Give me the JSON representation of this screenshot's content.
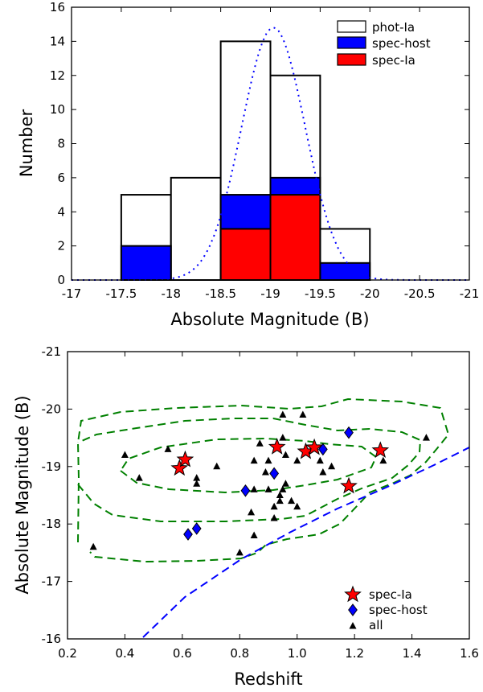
{
  "chart_data": [
    {
      "type": "bar",
      "subtype": "histogram",
      "xlabel": "Absolute Magnitude (B)",
      "ylabel": "Number",
      "xlim": [
        -17,
        -21
      ],
      "ylim": [
        0,
        16
      ],
      "xticks": [
        "-17",
        "-17.5",
        "-18",
        "-18.5",
        "-19",
        "-19.5",
        "-20",
        "-20.5",
        "-21"
      ],
      "xtick_values": [
        -17,
        -17.5,
        -18,
        -18.5,
        -19,
        -19.5,
        -20,
        -20.5,
        -21
      ],
      "yticks": [
        "0",
        "2",
        "4",
        "6",
        "8",
        "10",
        "12",
        "14",
        "16"
      ],
      "ytick_values": [
        0,
        2,
        4,
        6,
        8,
        10,
        12,
        14,
        16
      ],
      "bin_edges": [
        -17.5,
        -18,
        -18.5,
        -19,
        -19.5,
        -20
      ],
      "series": [
        {
          "name": "phot-Ia",
          "values": [
            5,
            6,
            14,
            12,
            3
          ],
          "color": "#ffffff"
        },
        {
          "name": "spec-host",
          "values": [
            2,
            0,
            5,
            6,
            1
          ],
          "color": "#0000ff"
        },
        {
          "name": "spec-Ia",
          "values": [
            0,
            0,
            3,
            5,
            0
          ],
          "color": "#ff0000"
        }
      ],
      "gaussian_curve": {
        "peak": 14.8,
        "center": -19.03,
        "sigma": 0.32,
        "color": "#0000ff",
        "style": "dotted"
      },
      "legend_position": "upper-right"
    },
    {
      "type": "scatter",
      "xlabel": "Redshift",
      "ylabel": "Absolute Magnitude (B)",
      "xlim": [
        0.2,
        1.6
      ],
      "ylim": [
        -16,
        -21
      ],
      "xticks": [
        "0.2",
        "0.4",
        "0.6",
        "0.8",
        "1.0",
        "1.2",
        "1.4",
        "1.6"
      ],
      "xtick_values": [
        0.2,
        0.4,
        0.6,
        0.8,
        1.0,
        1.2,
        1.4,
        1.6
      ],
      "yticks": [
        "-16",
        "-17",
        "-18",
        "-19",
        "-20",
        "-21"
      ],
      "ytick_values": [
        -16,
        -17,
        -18,
        -19,
        -20,
        -21
      ],
      "series": [
        {
          "name": "spec-Ia",
          "marker": "star",
          "color": "#ff0000",
          "x": [
            0.59,
            0.61,
            0.93,
            1.03,
            1.06,
            1.18,
            1.29
          ],
          "y": [
            -18.97,
            -19.12,
            -19.34,
            -19.26,
            -19.33,
            -18.66,
            -19.28
          ]
        },
        {
          "name": "spec-host",
          "marker": "diamond",
          "color": "#0000ff",
          "x": [
            0.62,
            0.65,
            0.82,
            0.92,
            1.09,
            1.18
          ],
          "y": [
            -17.82,
            -17.92,
            -18.58,
            -18.88,
            -19.3,
            -19.59
          ]
        },
        {
          "name": "all",
          "marker": "triangle",
          "color": "#000000",
          "x": [
            0.29,
            0.4,
            0.45,
            0.55,
            0.65,
            0.65,
            0.72,
            0.8,
            0.84,
            0.85,
            0.85,
            0.85,
            0.87,
            0.89,
            0.9,
            0.9,
            0.92,
            0.92,
            0.94,
            0.94,
            0.95,
            0.95,
            0.95,
            0.96,
            0.96,
            0.98,
            1.0,
            1.0,
            1.02,
            1.08,
            1.09,
            1.12,
            1.3,
            1.45
          ],
          "y": [
            -17.6,
            -19.2,
            -18.8,
            -19.3,
            -18.8,
            -18.7,
            -19.0,
            -17.5,
            -18.2,
            -17.8,
            -18.6,
            -19.1,
            -19.4,
            -18.9,
            -19.1,
            -18.6,
            -18.3,
            -18.1,
            -18.5,
            -18.4,
            -19.9,
            -19.5,
            -18.6,
            -18.7,
            -19.2,
            -18.4,
            -18.3,
            -19.1,
            -19.9,
            -19.1,
            -18.9,
            -19.0,
            -19.1,
            -19.5
          ]
        }
      ],
      "contours": {
        "color": "#008000",
        "style": "dashed",
        "count": 3
      },
      "limit_line": {
        "color": "#0000ff",
        "style": "dashed"
      },
      "legend_position": "lower-right"
    }
  ]
}
